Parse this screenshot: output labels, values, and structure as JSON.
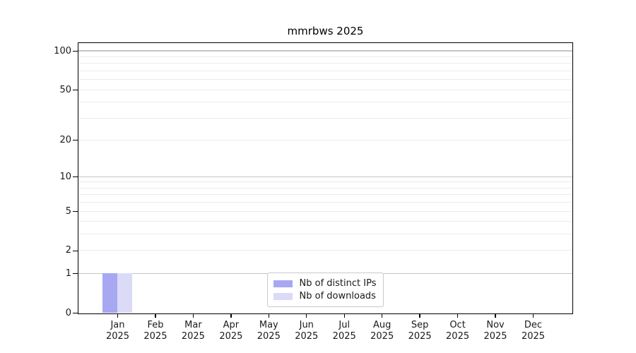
{
  "chart_data": {
    "type": "bar",
    "title": "mmrbws 2025",
    "categories": [
      "Jan",
      "Feb",
      "Mar",
      "Apr",
      "May",
      "Jun",
      "Jul",
      "Aug",
      "Sep",
      "Oct",
      "Nov",
      "Dec"
    ],
    "x_year_label": "2025",
    "series": [
      {
        "name": "Nb of distinct IPs",
        "color": "#a7a7f2",
        "values": [
          1,
          0,
          0,
          0,
          0,
          0,
          0,
          0,
          0,
          0,
          0,
          0
        ]
      },
      {
        "name": "Nb of downloads",
        "color": "#dbdbf8",
        "values": [
          1,
          0,
          0,
          0,
          0,
          0,
          0,
          0,
          0,
          0,
          0,
          0
        ]
      }
    ],
    "yticks": [
      0,
      1,
      2,
      5,
      10,
      20,
      50,
      100
    ],
    "scale": "log1p",
    "ylim": [
      0,
      115
    ],
    "grid": true,
    "legend_position": "lower center",
    "colors": {
      "major_grid": "#c4c4c4",
      "minor_grid": "#ececec",
      "spine": "#000000",
      "background": "#ffffff"
    }
  }
}
